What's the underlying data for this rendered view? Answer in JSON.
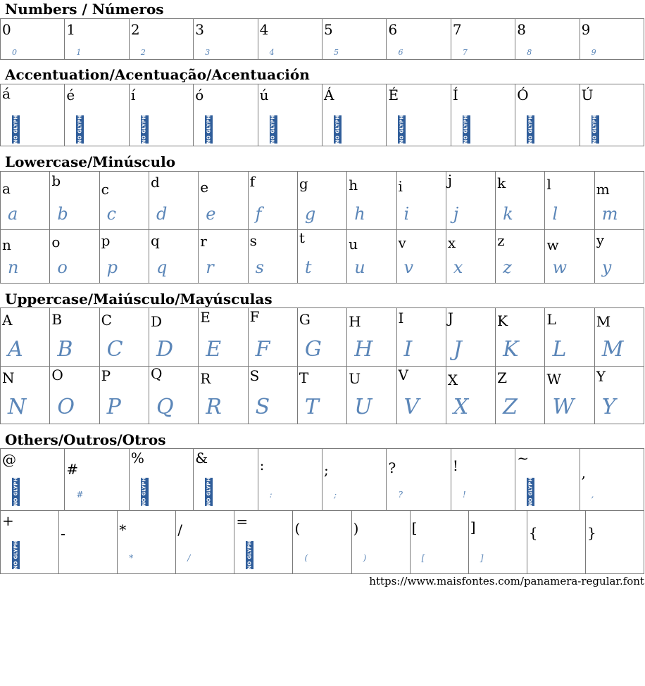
{
  "sections": {
    "numbers": {
      "title": "Numbers / Números",
      "rows": [
        [
          {
            "char": "0",
            "glyph": "0"
          },
          {
            "char": "1",
            "glyph": "1"
          },
          {
            "char": "2",
            "glyph": "2"
          },
          {
            "char": "3",
            "glyph": "3"
          },
          {
            "char": "4",
            "glyph": "4"
          },
          {
            "char": "5",
            "glyph": "5"
          },
          {
            "char": "6",
            "glyph": "6"
          },
          {
            "char": "7",
            "glyph": "7"
          },
          {
            "char": "8",
            "glyph": "8"
          },
          {
            "char": "9",
            "glyph": "9"
          }
        ]
      ]
    },
    "accents": {
      "title": "Accentuation/Acentuação/Acentuación",
      "rows": [
        [
          {
            "char": "á",
            "no_glyph": true
          },
          {
            "char": "é",
            "no_glyph": true
          },
          {
            "char": "í",
            "no_glyph": true
          },
          {
            "char": "ó",
            "no_glyph": true
          },
          {
            "char": "ú",
            "no_glyph": true
          },
          {
            "char": "Á",
            "no_glyph": true
          },
          {
            "char": "É",
            "no_glyph": true
          },
          {
            "char": "Í",
            "no_glyph": true
          },
          {
            "char": "Ó",
            "no_glyph": true
          },
          {
            "char": "Ú",
            "no_glyph": true
          }
        ]
      ]
    },
    "lowercase": {
      "title": "Lowercase/Minúsculo",
      "rows": [
        [
          {
            "char": "a",
            "glyph": "a"
          },
          {
            "char": "b",
            "glyph": "b"
          },
          {
            "char": "c",
            "glyph": "c"
          },
          {
            "char": "d",
            "glyph": "d"
          },
          {
            "char": "e",
            "glyph": "e"
          },
          {
            "char": "f",
            "glyph": "f"
          },
          {
            "char": "g",
            "glyph": "g"
          },
          {
            "char": "h",
            "glyph": "h"
          },
          {
            "char": "i",
            "glyph": "i"
          },
          {
            "char": "j",
            "glyph": "j"
          },
          {
            "char": "k",
            "glyph": "k"
          },
          {
            "char": "l",
            "glyph": "l"
          },
          {
            "char": "m",
            "glyph": "m"
          }
        ],
        [
          {
            "char": "n",
            "glyph": "n"
          },
          {
            "char": "o",
            "glyph": "o"
          },
          {
            "char": "p",
            "glyph": "p"
          },
          {
            "char": "q",
            "glyph": "q"
          },
          {
            "char": "r",
            "glyph": "r"
          },
          {
            "char": "s",
            "glyph": "s"
          },
          {
            "char": "t",
            "glyph": "t"
          },
          {
            "char": "u",
            "glyph": "u"
          },
          {
            "char": "v",
            "glyph": "v"
          },
          {
            "char": "x",
            "glyph": "x"
          },
          {
            "char": "z",
            "glyph": "z"
          },
          {
            "char": "w",
            "glyph": "w"
          },
          {
            "char": "y",
            "glyph": "y"
          }
        ]
      ]
    },
    "uppercase": {
      "title": "Uppercase/Maiúsculo/Mayúsculas",
      "rows": [
        [
          {
            "char": "A",
            "glyph": "A"
          },
          {
            "char": "B",
            "glyph": "B"
          },
          {
            "char": "C",
            "glyph": "C"
          },
          {
            "char": "D",
            "glyph": "D"
          },
          {
            "char": "E",
            "glyph": "E"
          },
          {
            "char": "F",
            "glyph": "F"
          },
          {
            "char": "G",
            "glyph": "G"
          },
          {
            "char": "H",
            "glyph": "H"
          },
          {
            "char": "I",
            "glyph": "I"
          },
          {
            "char": "J",
            "glyph": "J"
          },
          {
            "char": "K",
            "glyph": "K"
          },
          {
            "char": "L",
            "glyph": "L"
          },
          {
            "char": "M",
            "glyph": "M"
          }
        ],
        [
          {
            "char": "N",
            "glyph": "N"
          },
          {
            "char": "O",
            "glyph": "O"
          },
          {
            "char": "P",
            "glyph": "P"
          },
          {
            "char": "Q",
            "glyph": "Q"
          },
          {
            "char": "R",
            "glyph": "R"
          },
          {
            "char": "S",
            "glyph": "S"
          },
          {
            "char": "T",
            "glyph": "T"
          },
          {
            "char": "U",
            "glyph": "U"
          },
          {
            "char": "V",
            "glyph": "V"
          },
          {
            "char": "X",
            "glyph": "X"
          },
          {
            "char": "Z",
            "glyph": "Z"
          },
          {
            "char": "W",
            "glyph": "W"
          },
          {
            "char": "Y",
            "glyph": "Y"
          }
        ]
      ]
    },
    "others": {
      "title": "Others/Outros/Otros",
      "rows": [
        [
          {
            "char": "@",
            "no_glyph": true
          },
          {
            "char": "#",
            "glyph": "#"
          },
          {
            "char": "%",
            "no_glyph": true
          },
          {
            "char": "&",
            "no_glyph": true
          },
          {
            "char": ":",
            "glyph": ":"
          },
          {
            "char": ";",
            "glyph": ";"
          },
          {
            "char": "?",
            "glyph": "?"
          },
          {
            "char": "!",
            "glyph": "!"
          },
          {
            "char": "~",
            "no_glyph": true
          },
          {
            "char": ",",
            "glyph": ","
          }
        ],
        [
          {
            "char": "+",
            "no_glyph": true
          },
          {
            "char": "-",
            "glyph": ""
          },
          {
            "char": "*",
            "glyph": "*"
          },
          {
            "char": "/",
            "glyph": "/"
          },
          {
            "char": "=",
            "no_glyph": true
          },
          {
            "char": "(",
            "glyph": "("
          },
          {
            "char": ")",
            "glyph": ")"
          },
          {
            "char": "[",
            "glyph": "["
          },
          {
            "char": "]",
            "glyph": "]"
          },
          {
            "char": "{",
            "glyph": ""
          },
          {
            "char": "}",
            "glyph": ""
          }
        ]
      ]
    }
  },
  "no_glyph_label": "NO GLYPH",
  "footer_url": "https://www.maisfontes.com/panamera-regular.font",
  "colors": {
    "glyph": "#5b86b8",
    "no_glyph_badge": "#2f5d9a",
    "grid_border": "#7a7a7a"
  }
}
